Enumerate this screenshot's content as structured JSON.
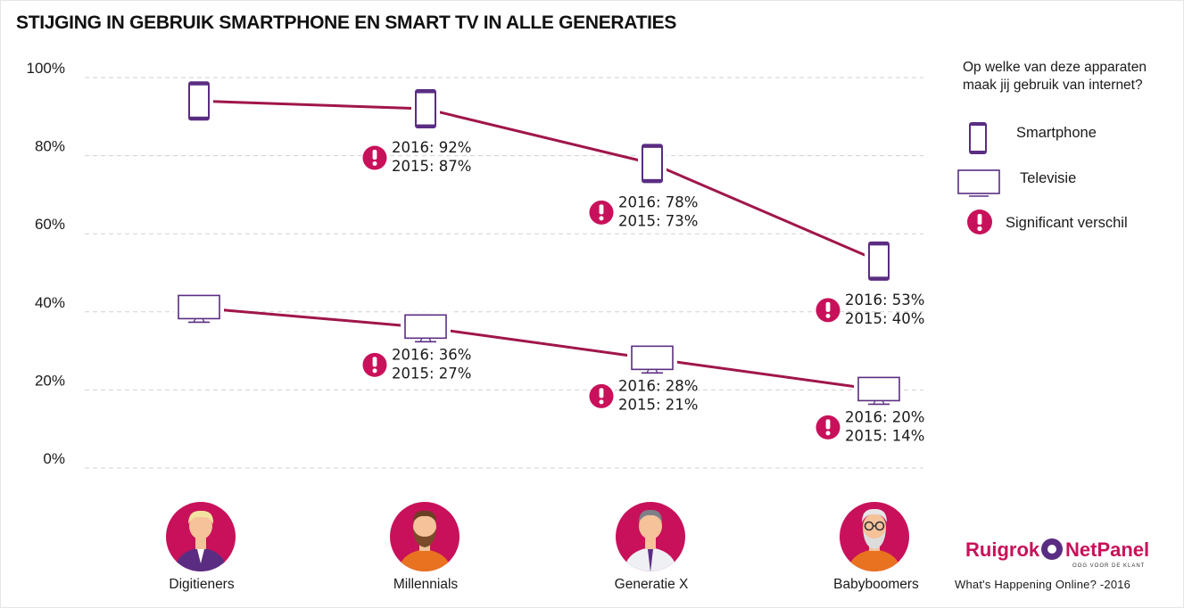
{
  "title": "STIJGING IN GEBRUIK SMARTPHONE EN SMART TV IN ALLE GENERATIES",
  "colors": {
    "line": "#a0164a",
    "icon": "#5a2d82",
    "badge": "#c8115a",
    "grid": "#d0d0d0"
  },
  "legend": {
    "question": "Op welke van deze apparaten maak jij gebruik van internet?",
    "items": [
      {
        "icon": "smartphone-icon",
        "label": "Smartphone"
      },
      {
        "icon": "television-icon",
        "label": "Televisie"
      },
      {
        "icon": "significant-icon",
        "label": "Significant verschil"
      }
    ]
  },
  "chart_data": {
    "type": "line",
    "categories": [
      "Digitieners",
      "Millennials",
      "Generatie X",
      "Babyboomers"
    ],
    "ylim": [
      0,
      100
    ],
    "yticks": [
      0,
      20,
      40,
      60,
      80,
      100
    ],
    "ytick_labels": [
      "0%",
      "20%",
      "40%",
      "60%",
      "80%",
      "100%"
    ],
    "series": [
      {
        "name": "Smartphone",
        "values": [
          94,
          92,
          78,
          53
        ],
        "annotations": [
          null,
          {
            "line1": "2016: 92%",
            "line2": "2015: 87%",
            "significant": true
          },
          {
            "line1": "2016: 78%",
            "line2": "2015: 73%",
            "significant": true
          },
          {
            "line1": "2016: 53%",
            "line2": "2015: 40%",
            "significant": true
          }
        ]
      },
      {
        "name": "Televisie",
        "values": [
          41,
          36,
          28,
          20
        ],
        "annotations": [
          null,
          {
            "line1": "2016: 36%",
            "line2": "2015: 27%",
            "significant": true
          },
          {
            "line1": "2016: 28%",
            "line2": "2015: 21%",
            "significant": true
          },
          {
            "line1": "2016: 20%",
            "line2": "2015: 14%",
            "significant": true
          }
        ]
      }
    ]
  },
  "brand": {
    "name_left": "Ruigrok",
    "name_right": "NetPanel",
    "tagline": "OOG VOOR DE KLANT",
    "source": "What's Happening Online? -2016"
  }
}
